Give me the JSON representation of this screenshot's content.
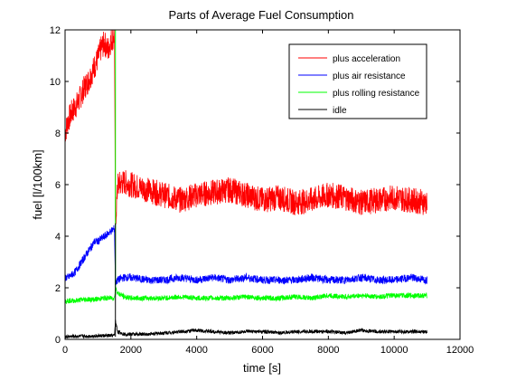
{
  "chart_data": {
    "type": "line",
    "title": "Parts of Average Fuel Consumption",
    "xlabel": "time [s]",
    "ylabel": "fuel [l/100km]",
    "xlim": [
      0,
      12000
    ],
    "ylim": [
      0,
      12
    ],
    "xticks": [
      "0",
      "2000",
      "4000",
      "6000",
      "8000",
      "10000",
      "12000"
    ],
    "yticks": [
      "0",
      "2",
      "4",
      "6",
      "8",
      "10",
      "12"
    ],
    "legend_position": "top-right",
    "grid": false,
    "series": [
      {
        "name": "plus acceleration",
        "color": "#ff0000",
        "x": [
          0,
          100,
          200,
          300,
          400,
          500,
          600,
          700,
          800,
          900,
          1000,
          1100,
          1200,
          1300,
          1400,
          1500,
          1530,
          1600,
          1800,
          2000,
          2500,
          3000,
          3500,
          4000,
          4500,
          5000,
          5500,
          6000,
          6500,
          7000,
          7500,
          8000,
          8500,
          9000,
          9500,
          10000,
          10500,
          11000
        ],
        "y": [
          8.0,
          8.5,
          8.8,
          9.0,
          9.2,
          9.5,
          9.8,
          10.0,
          10.3,
          10.6,
          10.9,
          11.3,
          11.5,
          11.2,
          11.6,
          11.8,
          4.5,
          6.0,
          6.1,
          6.0,
          5.8,
          5.6,
          5.4,
          5.6,
          5.7,
          5.8,
          5.6,
          5.4,
          5.5,
          5.3,
          5.4,
          5.6,
          5.5,
          5.3,
          5.4,
          5.5,
          5.4,
          5.3
        ],
        "noise": 0.5
      },
      {
        "name": "plus air resistance",
        "color": "#0000ff",
        "x": [
          0,
          100,
          200,
          300,
          400,
          500,
          600,
          700,
          800,
          900,
          1000,
          1100,
          1200,
          1300,
          1400,
          1500,
          1530,
          1600,
          1800,
          2000,
          2500,
          3000,
          3500,
          4000,
          4500,
          5000,
          5500,
          6000,
          6500,
          7000,
          7500,
          8000,
          8500,
          9000,
          9500,
          10000,
          10500,
          11000
        ],
        "y": [
          2.4,
          2.4,
          2.5,
          2.6,
          2.8,
          3.0,
          3.2,
          3.4,
          3.6,
          3.8,
          3.8,
          3.9,
          4.0,
          4.1,
          4.2,
          4.3,
          2.2,
          2.3,
          2.4,
          2.4,
          2.3,
          2.3,
          2.4,
          2.3,
          2.4,
          2.3,
          2.4,
          2.3,
          2.3,
          2.3,
          2.4,
          2.3,
          2.3,
          2.4,
          2.3,
          2.3,
          2.4,
          2.3
        ],
        "noise": 0.15
      },
      {
        "name": "plus rolling resistance",
        "color": "#00ff00",
        "x": [
          0,
          300,
          600,
          900,
          1200,
          1500,
          1530,
          1600,
          1800,
          2000,
          2500,
          3000,
          3500,
          4000,
          4500,
          5000,
          5500,
          6000,
          6500,
          7000,
          7500,
          8000,
          8500,
          9000,
          9500,
          10000,
          10500,
          11000
        ],
        "y": [
          1.5,
          1.5,
          1.55,
          1.55,
          1.6,
          1.6,
          2.0,
          1.8,
          1.65,
          1.6,
          1.6,
          1.6,
          1.65,
          1.6,
          1.6,
          1.6,
          1.65,
          1.6,
          1.6,
          1.65,
          1.6,
          1.7,
          1.65,
          1.7,
          1.65,
          1.7,
          1.7,
          1.7
        ],
        "noise": 0.1
      },
      {
        "name": "idle",
        "color": "#000000",
        "x": [
          0,
          300,
          600,
          900,
          1200,
          1500,
          1530,
          1600,
          1800,
          2000,
          2500,
          3000,
          3500,
          4000,
          4500,
          5000,
          5500,
          6000,
          6500,
          7000,
          7500,
          8000,
          8500,
          9000,
          9500,
          10000,
          10500,
          11000
        ],
        "y": [
          0.1,
          0.12,
          0.12,
          0.13,
          0.14,
          0.15,
          0.7,
          0.3,
          0.2,
          0.2,
          0.2,
          0.25,
          0.3,
          0.35,
          0.3,
          0.25,
          0.3,
          0.3,
          0.25,
          0.3,
          0.3,
          0.3,
          0.25,
          0.35,
          0.3,
          0.3,
          0.3,
          0.3
        ],
        "noise": 0.07
      }
    ]
  }
}
